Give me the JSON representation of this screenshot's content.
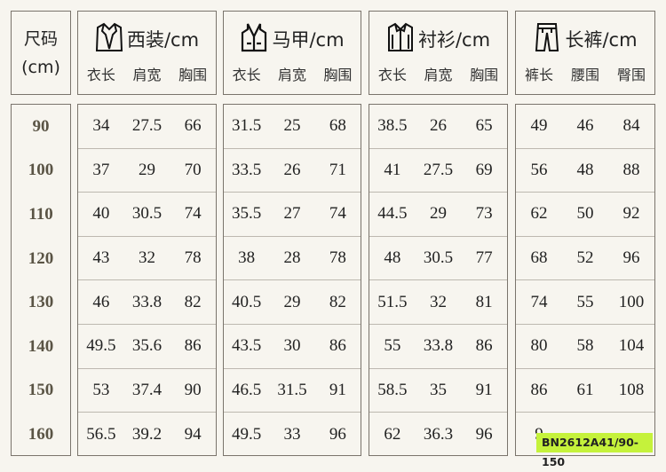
{
  "size_header": {
    "line1": "尺码",
    "line2": "(cm)"
  },
  "sizes": [
    "90",
    "100",
    "110",
    "120",
    "130",
    "140",
    "150",
    "160"
  ],
  "groups": [
    {
      "title": "西装/cm",
      "icon": "suit-jacket-icon",
      "cols": [
        "衣长",
        "肩宽",
        "胸围"
      ],
      "rows": [
        [
          "34",
          "27.5",
          "66"
        ],
        [
          "37",
          "29",
          "70"
        ],
        [
          "40",
          "30.5",
          "74"
        ],
        [
          "43",
          "32",
          "78"
        ],
        [
          "46",
          "33.8",
          "82"
        ],
        [
          "49.5",
          "35.6",
          "86"
        ],
        [
          "53",
          "37.4",
          "90"
        ],
        [
          "56.5",
          "39.2",
          "94"
        ]
      ]
    },
    {
      "title": "马甲/cm",
      "icon": "vest-icon",
      "cols": [
        "衣长",
        "肩宽",
        "胸围"
      ],
      "rows": [
        [
          "31.5",
          "25",
          "68"
        ],
        [
          "33.5",
          "26",
          "71"
        ],
        [
          "35.5",
          "27",
          "74"
        ],
        [
          "38",
          "28",
          "78"
        ],
        [
          "40.5",
          "29",
          "82"
        ],
        [
          "43.5",
          "30",
          "86"
        ],
        [
          "46.5",
          "31.5",
          "91"
        ],
        [
          "49.5",
          "33",
          "96"
        ]
      ]
    },
    {
      "title": "衬衫/cm",
      "icon": "shirt-icon",
      "cols": [
        "衣长",
        "肩宽",
        "胸围"
      ],
      "rows": [
        [
          "38.5",
          "26",
          "65"
        ],
        [
          "41",
          "27.5",
          "69"
        ],
        [
          "44.5",
          "29",
          "73"
        ],
        [
          "48",
          "30.5",
          "77"
        ],
        [
          "51.5",
          "32",
          "81"
        ],
        [
          "55",
          "33.8",
          "86"
        ],
        [
          "58.5",
          "35",
          "91"
        ],
        [
          "62",
          "36.3",
          "96"
        ]
      ]
    },
    {
      "title": "长裤/cm",
      "icon": "trousers-icon",
      "cols": [
        "裤长",
        "腰围",
        "臀围"
      ],
      "rows": [
        [
          "49",
          "46",
          "84"
        ],
        [
          "56",
          "48",
          "88"
        ],
        [
          "62",
          "50",
          "92"
        ],
        [
          "68",
          "52",
          "96"
        ],
        [
          "74",
          "55",
          "100"
        ],
        [
          "80",
          "58",
          "104"
        ],
        [
          "86",
          "61",
          "108"
        ],
        [
          "9",
          "",
          ""
        ]
      ]
    }
  ],
  "product_code": "BN2612A41/90-150",
  "colors": {
    "tag": "#c5f23b",
    "border": "#7a746c",
    "size_text": "#5a5445"
  }
}
